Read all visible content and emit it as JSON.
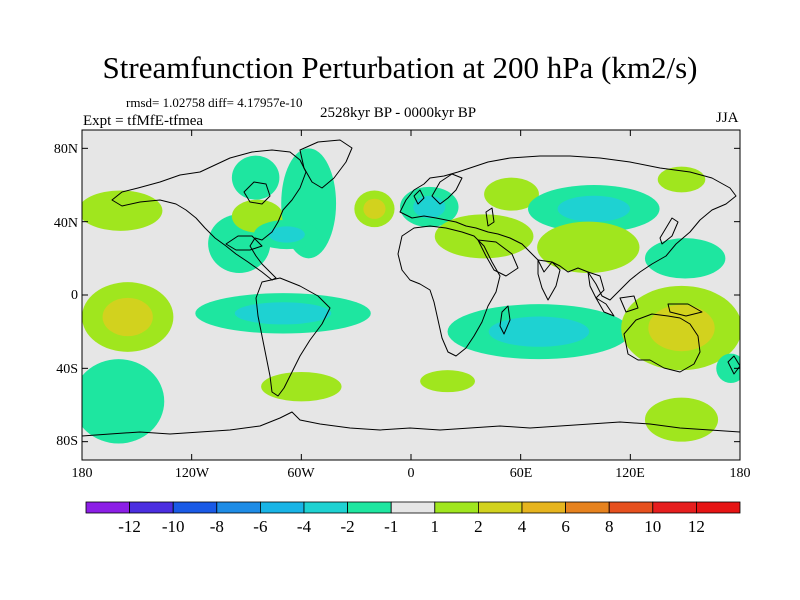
{
  "map": {
    "title": "Streamfunction Perturbation at 200 hPa (km2/s)",
    "stats": "rmsd= 1.02758 diff= 4.17957e-10",
    "experiment": "Expt = tfMfE-tfmea",
    "period": "2528kyr BP - 0000kyr BP",
    "season": "JJA",
    "lat_labels": [
      "80N",
      "40N",
      "0",
      "40S",
      "80S"
    ],
    "lon_labels": [
      "180",
      "120W",
      "60W",
      "0",
      "60E",
      "120E",
      "180"
    ],
    "background_color": "#e6e6e6"
  },
  "colorbar": {
    "labels": [
      "-12",
      "-10",
      "-8",
      "-6",
      "-4",
      "-2",
      "-1",
      "1",
      "2",
      "4",
      "6",
      "8",
      "10",
      "12"
    ],
    "colors": [
      "#8c1ee6",
      "#4b2ee0",
      "#1a5ae6",
      "#1e8ce6",
      "#19b4e6",
      "#1ed2d2",
      "#1ee6a0",
      "#e6e6e6",
      "#a0e61e",
      "#d2d21e",
      "#e6b41e",
      "#e6821e",
      "#e6501e",
      "#e61e1e",
      "#e61414"
    ]
  },
  "chart_data": {
    "type": "heatmap",
    "title": "Streamfunction Perturbation at 200 hPa (km2/s)",
    "variable": "streamfunction perturbation",
    "units": "km2/s",
    "level": "200 hPa",
    "season": "JJA",
    "lon_range": [
      -180,
      180
    ],
    "lat_range": [
      -90,
      90
    ],
    "contour_levels": [
      -12,
      -10,
      -8,
      -6,
      -4,
      -2,
      -1,
      1,
      2,
      4,
      6,
      8,
      10,
      12
    ],
    "features": [
      {
        "lon": -159,
        "lat": 46,
        "rlon": 23,
        "rlat": 11,
        "value": 1.5
      },
      {
        "lon": -94,
        "lat": 28,
        "rlon": 17,
        "rlat": 16,
        "value": -1.5
      },
      {
        "lon": -84,
        "lat": 43,
        "rlon": 14,
        "rlat": 9,
        "value": 1.5
      },
      {
        "lon": -85,
        "lat": 64,
        "rlon": 13,
        "rlat": 12,
        "value": -1.5
      },
      {
        "lon": -56,
        "lat": 50,
        "rlon": 15,
        "rlat": 30,
        "value": -1.5
      },
      {
        "lon": -68,
        "lat": 33,
        "rlon": 18,
        "rlat": 8,
        "value": -2.5
      },
      {
        "lon": -20,
        "lat": 47,
        "rlon": 11,
        "rlat": 10,
        "value": 2.5
      },
      {
        "lon": 10,
        "lat": 48,
        "rlon": 16,
        "rlat": 11,
        "value": -2.5
      },
      {
        "lon": 55,
        "lat": 55,
        "rlon": 15,
        "rlat": 9,
        "value": 1.5
      },
      {
        "lon": 40,
        "lat": 32,
        "rlon": 27,
        "rlat": 12,
        "value": 1.5
      },
      {
        "lon": 100,
        "lat": 47,
        "rlon": 36,
        "rlat": 13,
        "value": -2.5
      },
      {
        "lon": 97,
        "lat": 26,
        "rlon": 28,
        "rlat": 14,
        "value": 1.5
      },
      {
        "lon": 148,
        "lat": 63,
        "rlon": 13,
        "rlat": 7,
        "value": 1.5
      },
      {
        "lon": 150,
        "lat": 20,
        "rlon": 22,
        "rlat": 11,
        "value": -1.5
      },
      {
        "lon": -155,
        "lat": -12,
        "rlon": 25,
        "rlat": 19,
        "value": 3
      },
      {
        "lon": -70,
        "lat": -10,
        "rlon": 48,
        "rlat": 11,
        "value": -3
      },
      {
        "lon": -60,
        "lat": -50,
        "rlon": 22,
        "rlat": 8,
        "value": 1.5
      },
      {
        "lon": -160,
        "lat": -58,
        "rlon": 25,
        "rlat": 23,
        "value": -1.5
      },
      {
        "lon": 70,
        "lat": -20,
        "rlon": 50,
        "rlat": 15,
        "value": -3
      },
      {
        "lon": 20,
        "lat": -47,
        "rlon": 15,
        "rlat": 6,
        "value": 1.5
      },
      {
        "lon": 148,
        "lat": -18,
        "rlon": 33,
        "rlat": 23,
        "value": 3
      },
      {
        "lon": 148,
        "lat": -68,
        "rlon": 20,
        "rlat": 12,
        "value": 1.5
      },
      {
        "lon": 175,
        "lat": -40,
        "rlon": 8,
        "rlat": 8,
        "value": -1.5
      }
    ]
  }
}
